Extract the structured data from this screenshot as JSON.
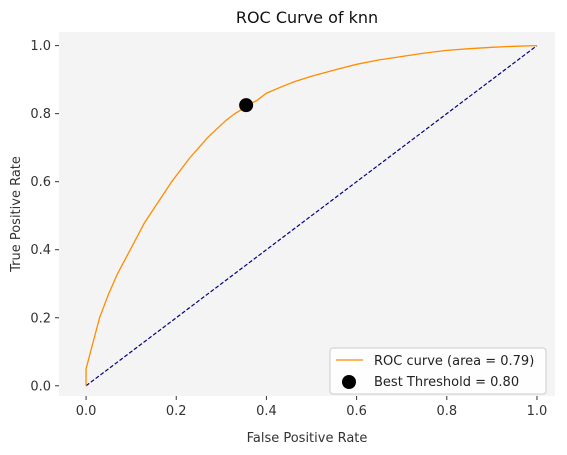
{
  "chart_data": {
    "type": "line",
    "title": "ROC Curve of knn",
    "xlabel": "False Positive Rate",
    "ylabel": "True Positive Rate",
    "xlim": [
      -0.06,
      1.04
    ],
    "ylim": [
      -0.03,
      1.04
    ],
    "grid": false,
    "legend_position": "lower-right",
    "x_ticks": [
      "0.0",
      "0.2",
      "0.4",
      "0.6",
      "0.8",
      "1.0"
    ],
    "y_ticks": [
      "0.0",
      "0.2",
      "0.4",
      "0.6",
      "0.8",
      "1.0"
    ],
    "colors": {
      "background": "#f4f4f4",
      "roc": "#ff8c00",
      "diagonal": "#000080",
      "best_point": "#000000"
    },
    "series": [
      {
        "name": "ROC curve (area = 0.79)",
        "x": [
          0.0,
          0.0,
          0.01,
          0.02,
          0.03,
          0.05,
          0.07,
          0.09,
          0.11,
          0.13,
          0.15,
          0.17,
          0.19,
          0.21,
          0.23,
          0.25,
          0.27,
          0.29,
          0.31,
          0.33,
          0.36,
          0.38,
          0.4,
          0.43,
          0.46,
          0.5,
          0.55,
          0.6,
          0.65,
          0.7,
          0.75,
          0.8,
          0.85,
          0.9,
          0.95,
          1.0
        ],
        "y": [
          0.0,
          0.05,
          0.1,
          0.15,
          0.2,
          0.27,
          0.33,
          0.38,
          0.43,
          0.48,
          0.52,
          0.56,
          0.6,
          0.635,
          0.67,
          0.7,
          0.73,
          0.755,
          0.78,
          0.8,
          0.825,
          0.84,
          0.86,
          0.877,
          0.893,
          0.91,
          0.928,
          0.945,
          0.958,
          0.968,
          0.978,
          0.986,
          0.991,
          0.995,
          0.998,
          1.0
        ]
      },
      {
        "name": "",
        "x": [
          0.0,
          1.0
        ],
        "y": [
          0.0,
          1.0
        ]
      }
    ],
    "best_threshold": {
      "label": "Best Threshold = 0.80",
      "x": 0.355,
      "y": 0.825
    }
  }
}
